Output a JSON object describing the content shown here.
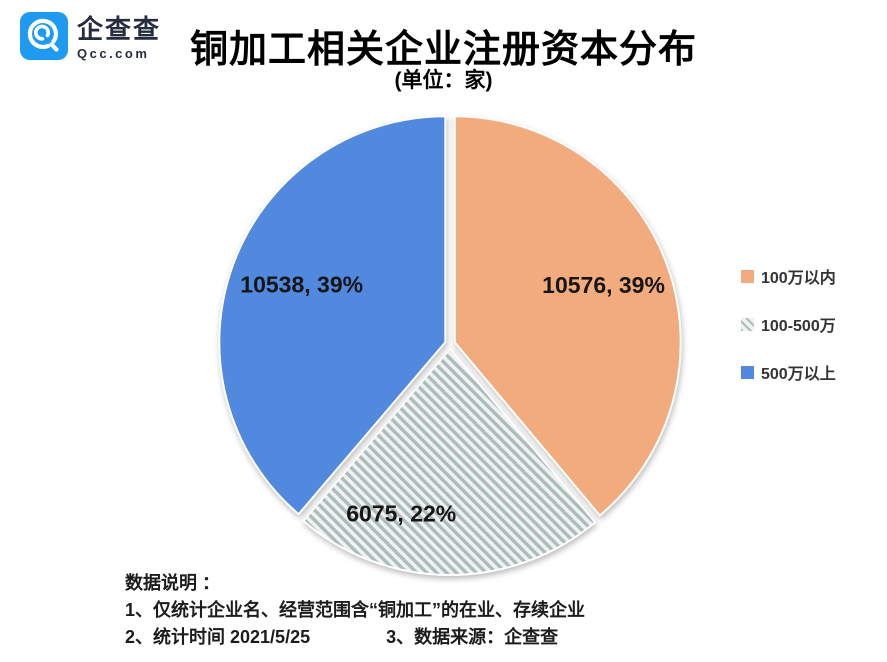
{
  "header": {
    "logo": {
      "brand_cn": "企查查",
      "brand_en": "Qcc.com",
      "icon_color": "#1E9BF0",
      "text_color": "#262B40"
    },
    "title": "铜加工相关企业注册资本分布",
    "subtitle": "(单位：家)"
  },
  "chart_data": {
    "type": "pie",
    "title": "铜加工相关企业注册资本分布",
    "subtitle": "(单位：家)",
    "unit": "家",
    "start_angle_deg": 0,
    "direction": "clockwise",
    "exploded": true,
    "legend_position": "right",
    "slices": [
      {
        "label": "100万以内",
        "value": 10576,
        "percent": "39%",
        "color": "#F2AB7C",
        "pattern": "solid"
      },
      {
        "label": "100-500万",
        "value": 6075,
        "percent": "22%",
        "color": "#ABBDBB",
        "pattern": "diagonal-hatch",
        "pattern_bg": "#F0F2F1"
      },
      {
        "label": "500万以上",
        "value": 10538,
        "percent": "39%",
        "color": "#5189DE",
        "pattern": "solid"
      }
    ],
    "data_labels": [
      "10576, 39%",
      "6075, 22%",
      "10538, 39%"
    ]
  },
  "notes": {
    "heading": "数据说明 ：",
    "line1": "1、仅统计企业名、经营范围含“铜加工”的在业、存续企业",
    "line2_left": "2、统计时间 2021/5/25",
    "line2_right": "3、数据来源：企查查"
  }
}
